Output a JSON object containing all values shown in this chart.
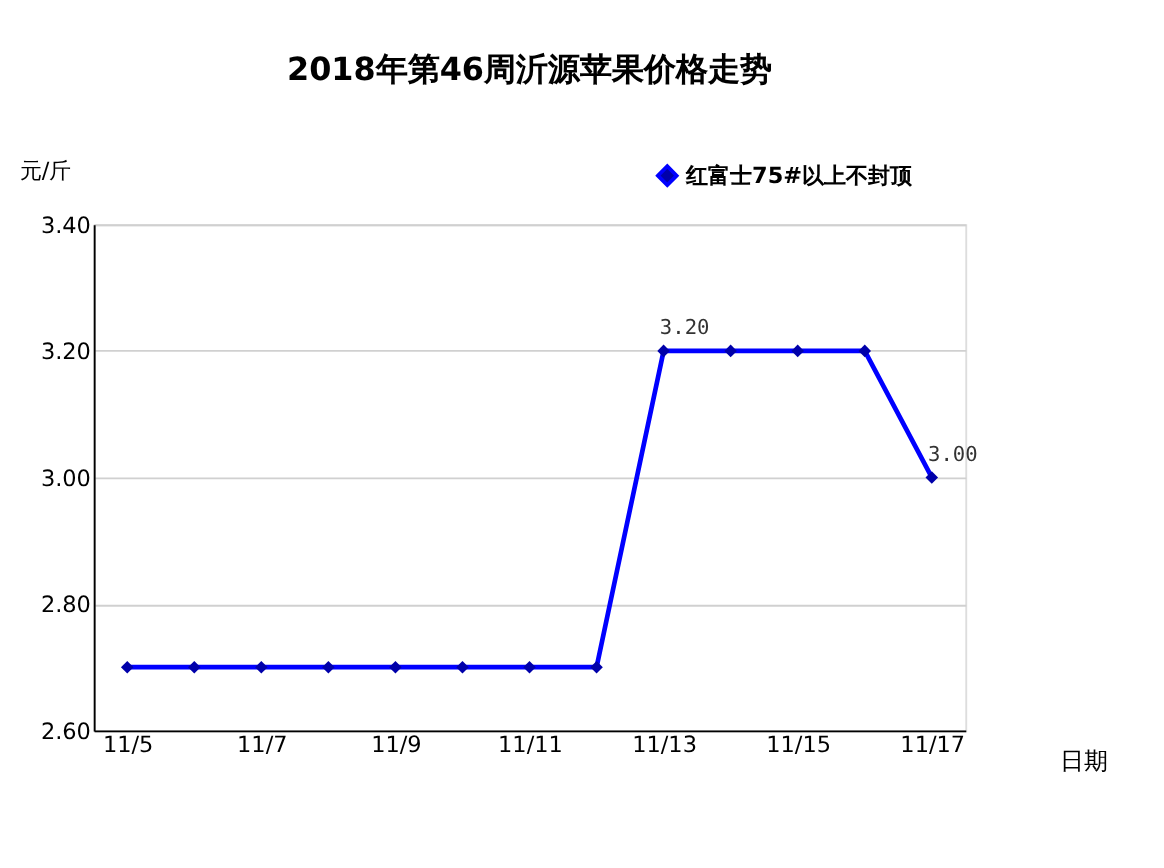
{
  "chart_data": {
    "type": "line",
    "title": "2018年第46周沂源苹果价格走势",
    "xlabel": "日期",
    "ylabel": "元/斤",
    "categories": [
      "11/5",
      null,
      "11/7",
      null,
      "11/9",
      null,
      "11/11",
      null,
      "11/13",
      null,
      "11/15",
      null,
      "11/17"
    ],
    "series": [
      {
        "name": "红富士75#以上不封顶",
        "color": "#0000ff",
        "values": [
          2.7,
          2.7,
          2.7,
          2.7,
          2.7,
          2.7,
          2.7,
          2.7,
          3.2,
          3.2,
          3.2,
          3.2,
          3.0
        ],
        "value_labels": [
          null,
          null,
          null,
          null,
          null,
          null,
          null,
          null,
          "3.20",
          null,
          null,
          null,
          "3.00"
        ]
      }
    ],
    "ylim": [
      2.6,
      3.4
    ],
    "yticks": [
      {
        "value": 2.6,
        "label": "2.60"
      },
      {
        "value": 2.8,
        "label": "2.80"
      },
      {
        "value": 3.0,
        "label": "3.00"
      },
      {
        "value": 3.2,
        "label": "3.20"
      },
      {
        "value": 3.4,
        "label": "3.40"
      }
    ],
    "grid": "y",
    "legend": "top right",
    "marker": "diamond",
    "line_style": "solid"
  }
}
